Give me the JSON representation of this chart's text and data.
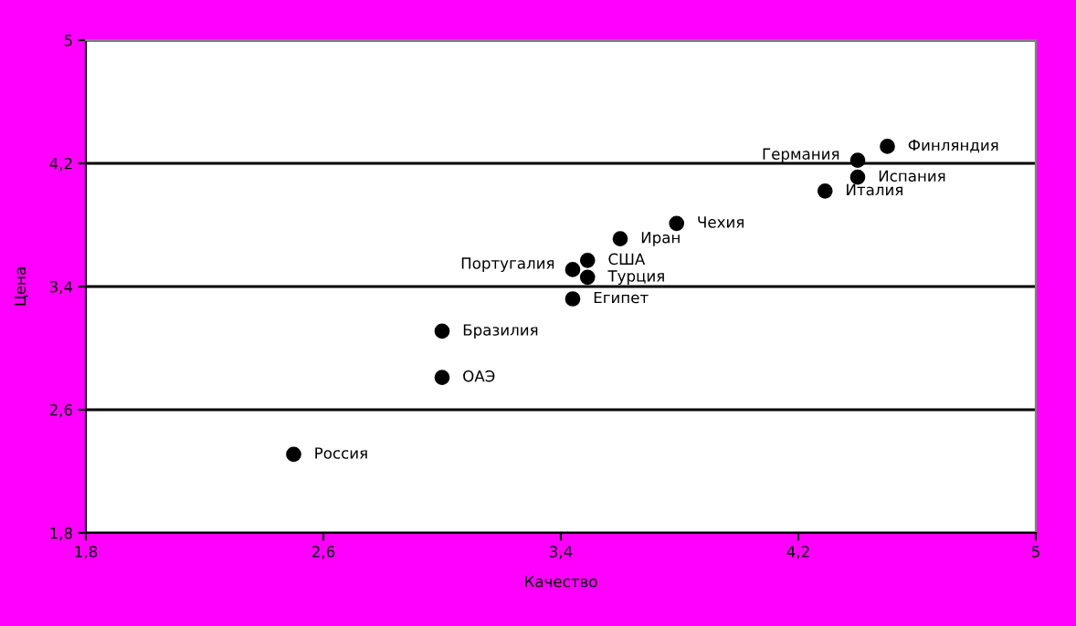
{
  "chart_data": {
    "type": "scatter",
    "xlabel": "Качество",
    "ylabel": "Цена",
    "x": [
      2.5,
      3.0,
      3.0,
      3.44,
      3.44,
      3.49,
      3.49,
      3.6,
      3.79,
      4.29,
      4.4,
      4.4,
      4.5
    ],
    "series": [
      {
        "color": "#000000",
        "values": [
          2.31,
          2.81,
          3.11,
          3.32,
          3.51,
          3.57,
          3.46,
          3.71,
          3.81,
          4.02,
          4.11,
          4.22,
          4.31
        ]
      }
    ],
    "annotations": [
      {
        "text": "Россия",
        "x": 2.5,
        "y": 2.31
      },
      {
        "text": "ОАЭ",
        "x": 3.0,
        "y": 2.81
      },
      {
        "text": "Бразилия",
        "x": 3.0,
        "y": 3.11
      },
      {
        "text": "Египет",
        "x": 3.44,
        "y": 3.32
      },
      {
        "text": "Португалия",
        "x": 3.44,
        "y": 3.51
      },
      {
        "text": "США",
        "x": 3.49,
        "y": 3.57
      },
      {
        "text": "Турция",
        "x": 3.49,
        "y": 3.46
      },
      {
        "text": "Иран",
        "x": 3.6,
        "y": 3.71
      },
      {
        "text": "Чехия",
        "x": 3.79,
        "y": 3.81
      },
      {
        "text": "Италия",
        "x": 4.29,
        "y": 4.02
      },
      {
        "text": "Испания",
        "x": 4.4,
        "y": 4.11
      },
      {
        "text": "Германия",
        "x": 4.4,
        "y": 4.22
      },
      {
        "text": "Финляндия",
        "x": 4.5,
        "y": 4.31
      }
    ],
    "xlim": [
      1.8,
      5
    ],
    "ylim": [
      1.8,
      5
    ],
    "xticks": [
      {
        "value": 1.8,
        "label": "1,8"
      },
      {
        "value": 2.6,
        "label": "2,6"
      },
      {
        "value": 3.4,
        "label": "3,4"
      },
      {
        "value": 4.2,
        "label": "4,2"
      },
      5
    ],
    "yticks": [
      {
        "value": 1.8,
        "label": "1,8"
      },
      {
        "value": 2.6,
        "label": "2,6"
      },
      {
        "value": 3.4,
        "label": "3,4"
      },
      {
        "value": 4.2,
        "label": "4,2"
      },
      5
    ],
    "grid": "y",
    "marker": "circle",
    "legend": false
  }
}
